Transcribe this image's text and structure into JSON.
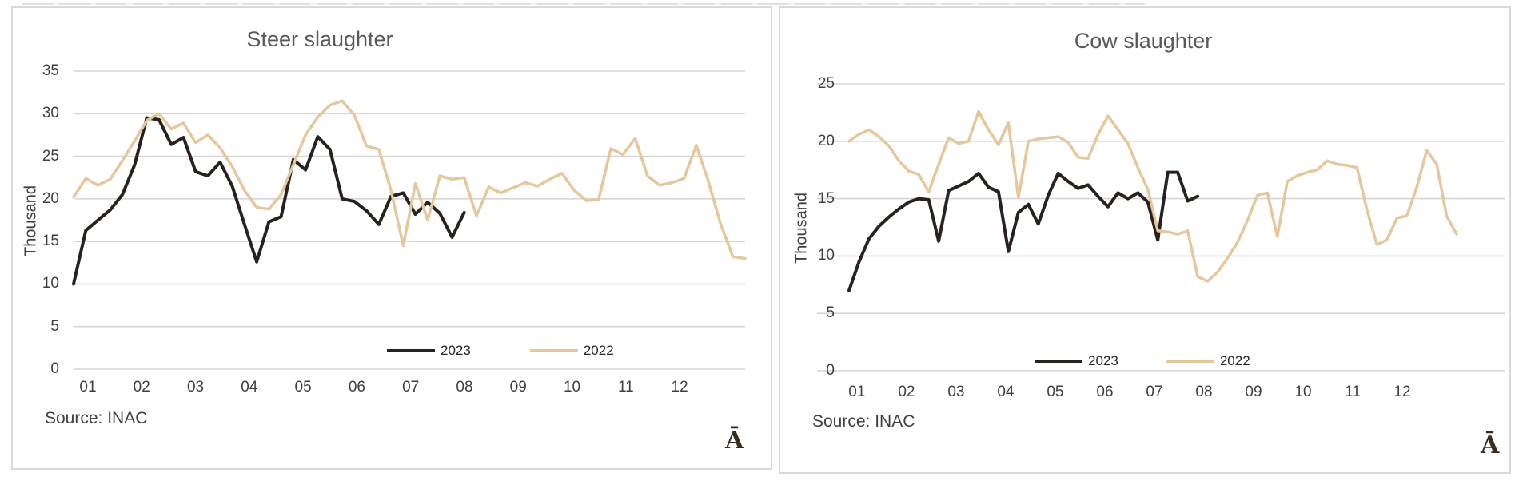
{
  "colors": {
    "grid": "#d6d6d6",
    "panel_border": "#d9d9d9",
    "title": "#595959",
    "tick": "#3f3f3f",
    "series_2023": "#29211d",
    "series_2022": "#e6c79c",
    "watermark": "#3a2b1c"
  },
  "chart_data": [
    {
      "type": "line",
      "title": "Steer slaughter",
      "ylabel": "Thousand",
      "ylim": [
        0,
        35
      ],
      "y_ticks": [
        35,
        30,
        25,
        20,
        15,
        10,
        5,
        0
      ],
      "x_labels": [
        "01",
        "02",
        "03",
        "04",
        "05",
        "06",
        "07",
        "08",
        "09",
        "10",
        "11",
        "12"
      ],
      "grid": true,
      "legend_position": "inside-bottom-right",
      "source": "Source: INAC",
      "watermark": "Ā",
      "series": [
        {
          "name": "2023",
          "color": "#29211d",
          "values": [
            10.0,
            16.3,
            17.5,
            18.7,
            20.5,
            24.0,
            29.5,
            29.3,
            26.4,
            27.2,
            23.2,
            22.7,
            24.3,
            21.5,
            17.0,
            12.6,
            17.3,
            17.9,
            24.6,
            23.4,
            27.3,
            25.8,
            20.0,
            19.7,
            18.6,
            17.0,
            20.3,
            20.7,
            18.2,
            19.6,
            18.3,
            15.5,
            18.4
          ]
        },
        {
          "name": "2022",
          "color": "#e6c79c",
          "values": [
            20.2,
            22.4,
            21.6,
            22.3,
            24.5,
            26.8,
            29.2,
            30.0,
            28.2,
            28.9,
            26.6,
            27.5,
            26.0,
            23.8,
            21.0,
            19.0,
            18.8,
            20.5,
            24.0,
            27.5,
            29.6,
            31.0,
            31.5,
            29.8,
            26.2,
            25.8,
            21.0,
            14.5,
            21.8,
            17.5,
            22.7,
            22.3,
            22.5,
            18.0,
            21.4,
            20.7,
            21.3,
            21.9,
            21.5,
            22.3,
            23.0,
            21.0,
            19.8,
            19.9,
            25.9,
            25.2,
            27.1,
            22.7,
            21.6,
            21.9,
            22.4,
            26.3,
            22.0,
            17.0,
            13.2,
            13.0
          ]
        }
      ]
    },
    {
      "type": "line",
      "title": "Cow slaughter",
      "ylabel": "Thousand",
      "ylim": [
        0,
        25
      ],
      "y_ticks": [
        25,
        20,
        15,
        10,
        5,
        0
      ],
      "x_labels": [
        "01",
        "02",
        "03",
        "04",
        "05",
        "06",
        "07",
        "08",
        "09",
        "10",
        "11",
        "12"
      ],
      "grid": true,
      "legend_position": "inside-bottom-right",
      "source": "Source: INAC",
      "watermark": "Ā",
      "series": [
        {
          "name": "2023",
          "color": "#29211d",
          "values": [
            7.0,
            9.5,
            11.5,
            12.6,
            13.4,
            14.1,
            14.7,
            15.0,
            14.9,
            11.3,
            15.7,
            16.1,
            16.5,
            17.2,
            16.0,
            15.6,
            10.4,
            13.8,
            14.5,
            12.8,
            15.3,
            17.2,
            16.5,
            15.9,
            16.2,
            15.2,
            14.3,
            15.5,
            15.0,
            15.5,
            14.7,
            11.4,
            17.3,
            17.3,
            14.8,
            15.2
          ]
        },
        {
          "name": "2022",
          "color": "#e6c79c",
          "values": [
            20.0,
            20.6,
            21.0,
            20.4,
            19.6,
            18.3,
            17.4,
            17.1,
            15.6,
            18.0,
            20.3,
            19.8,
            20.0,
            22.6,
            21.0,
            19.7,
            21.6,
            15.1,
            20.0,
            20.2,
            20.3,
            20.4,
            19.9,
            18.6,
            18.5,
            20.6,
            22.2,
            21.0,
            19.8,
            17.7,
            15.8,
            12.2,
            12.1,
            11.9,
            12.2,
            8.2,
            7.8,
            8.6,
            9.8,
            11.2,
            13.1,
            15.3,
            15.5,
            11.7,
            16.5,
            17.0,
            17.3,
            17.5,
            18.3,
            18.0,
            17.9,
            17.7,
            14.0,
            11.0,
            11.4,
            13.3,
            13.5,
            16.0,
            19.2,
            18.0,
            13.5,
            11.9
          ]
        }
      ]
    }
  ]
}
